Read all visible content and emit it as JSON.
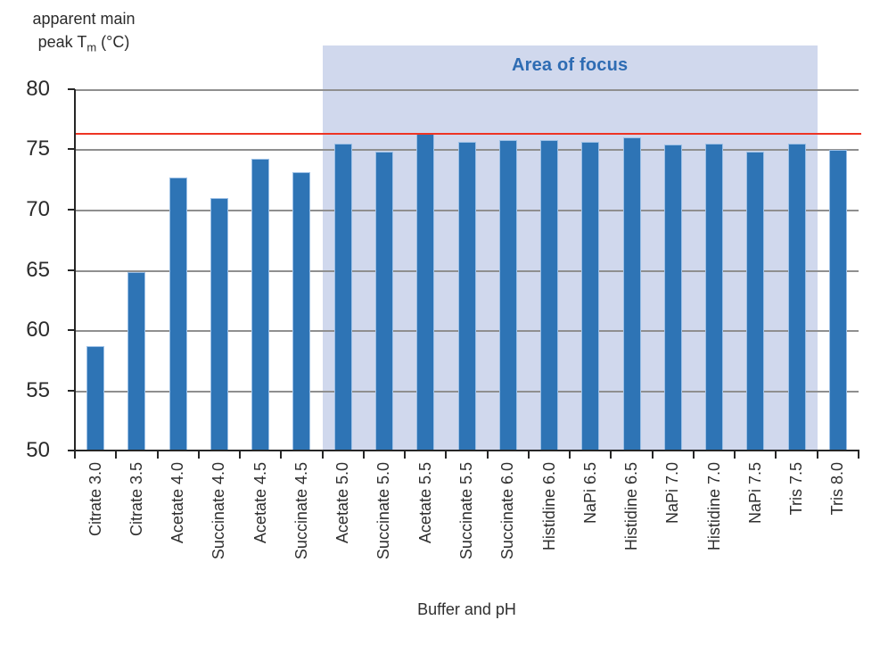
{
  "y_axis_title": {
    "line1": "apparent main",
    "line2_pre": "peak T",
    "line2_sub": "m",
    "line2_post": " (°C)"
  },
  "chart_data": {
    "type": "bar",
    "title": "",
    "xlabel": "Buffer and pH",
    "ylabel": "apparent main peak Tm (°C)",
    "categories": [
      "Citrate 3.0",
      "Citrate 3.5",
      "Acetate 4.0",
      "Succinate 4.0",
      "Acetate 4.5",
      "Succinate 4.5",
      "Acetate 5.0",
      "Succinate 5.0",
      "Acetate 5.5",
      "Succinate 5.5",
      "Succinate 6.0",
      "Histidine 6.0",
      "NaPi 6.5",
      "Histidine 6.5",
      "NaPi 7.0",
      "Histidine 7.0",
      "NaPi 7.5",
      "Tris 7.5",
      "Tris 8.0"
    ],
    "values": [
      58.7,
      64.8,
      72.7,
      71.0,
      74.2,
      73.1,
      75.5,
      74.8,
      76.4,
      75.6,
      75.8,
      75.8,
      75.6,
      76.0,
      75.4,
      75.5,
      74.8,
      75.5,
      75.0
    ],
    "ylim": [
      50,
      80
    ],
    "yticks": [
      50,
      55,
      60,
      65,
      70,
      75,
      80
    ],
    "grid": true,
    "legend": "none",
    "bar_color": "#2e74b5",
    "bar_edge_color": "#9cc0e6",
    "gridline_color": "#8f8f8f",
    "reference_line": {
      "value": 76.3,
      "color": "#ee3423"
    },
    "focus_area": {
      "label": "Area of focus",
      "start_category": "Acetate 5.0",
      "end_category": "Tris 7.5",
      "start_index": 6,
      "end_index": 17,
      "fill": "#d0d8ed",
      "label_color": "#2e6cb3"
    }
  }
}
